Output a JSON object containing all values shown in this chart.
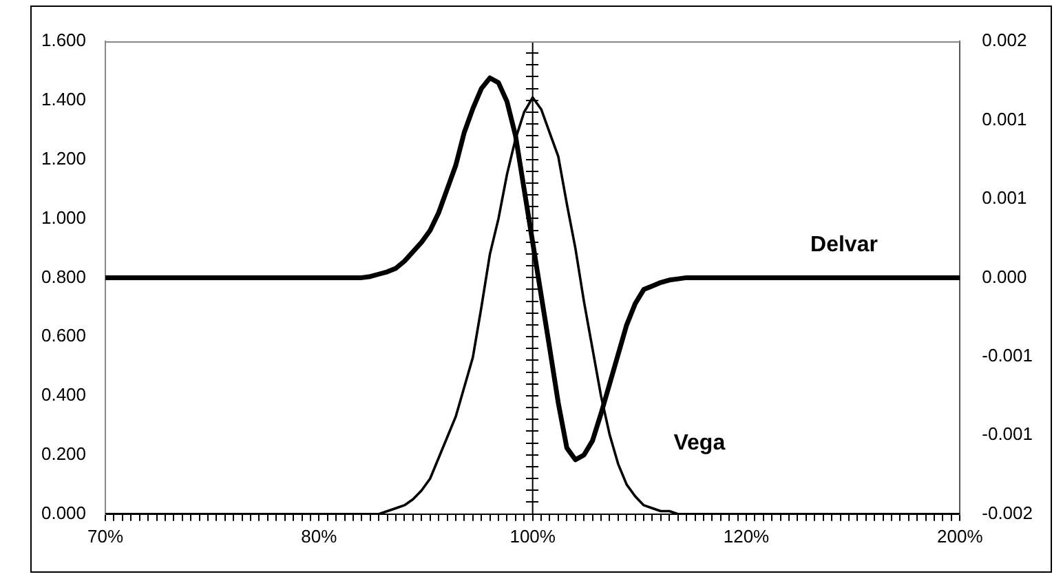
{
  "chart_data": {
    "type": "line",
    "categories": [
      "70%",
      null,
      null,
      null,
      null,
      null,
      null,
      null,
      null,
      null,
      null,
      null,
      null,
      null,
      null,
      null,
      null,
      null,
      null,
      null,
      null,
      null,
      null,
      null,
      null,
      "80%",
      null,
      null,
      null,
      null,
      null,
      null,
      null,
      null,
      null,
      null,
      null,
      null,
      null,
      null,
      null,
      null,
      null,
      null,
      null,
      null,
      null,
      null,
      null,
      null,
      "100%",
      null,
      null,
      null,
      null,
      null,
      null,
      null,
      null,
      null,
      null,
      null,
      null,
      null,
      null,
      null,
      null,
      null,
      null,
      null,
      null,
      null,
      null,
      null,
      null,
      "120%",
      null,
      null,
      null,
      null,
      null,
      null,
      null,
      null,
      null,
      null,
      null,
      null,
      null,
      null,
      null,
      null,
      null,
      null,
      null,
      null,
      null,
      null,
      null,
      null,
      "200%"
    ],
    "series": [
      {
        "name": "Delvar",
        "color": "#000000",
        "axis": "y2",
        "values": [
          0,
          0,
          0,
          0,
          0,
          0,
          0,
          0,
          0,
          0,
          0,
          0,
          0,
          0,
          0,
          0,
          0,
          0,
          0,
          0,
          0,
          0,
          0,
          0,
          0,
          0,
          0,
          0,
          0,
          0,
          0,
          1e-05,
          3e-05,
          5e-05,
          8e-05,
          0.00014,
          0.00022,
          0.0003,
          0.0004,
          0.00055,
          0.00075,
          0.00095,
          0.00123,
          0.00143,
          0.0016,
          0.00169,
          0.00165,
          0.00149,
          0.0012,
          0.00075,
          0.0003,
          -0.00015,
          -0.0006,
          -0.00106,
          -0.00144,
          -0.00154,
          -0.0015,
          -0.00138,
          -0.00115,
          -0.0009,
          -0.00065,
          -0.0004,
          -0.00022,
          -0.0001,
          -7e-05,
          -4e-05,
          -2e-05,
          -1e-05,
          0,
          0,
          0,
          0,
          0,
          0,
          0,
          0,
          0,
          0,
          0,
          0,
          0,
          0,
          0,
          0,
          0,
          0,
          0,
          0,
          0,
          0,
          0,
          0,
          0,
          0,
          0,
          0,
          0,
          0,
          0,
          0,
          0
        ]
      },
      {
        "name": "Vega",
        "color": "#000000",
        "values": [
          0,
          0,
          0,
          0,
          0,
          0,
          0,
          0,
          0,
          0,
          0,
          0,
          0,
          0,
          0,
          0,
          0,
          0,
          0,
          0,
          0,
          0,
          0,
          0,
          0,
          0,
          0,
          0,
          0,
          0,
          0,
          0,
          0,
          0.01,
          0.02,
          0.03,
          0.05,
          0.08,
          0.12,
          0.19,
          0.26,
          0.33,
          0.43,
          0.53,
          0.7,
          0.88,
          1.0,
          1.15,
          1.27,
          1.36,
          1.41,
          1.37,
          1.29,
          1.21,
          1.05,
          0.9,
          0.72,
          0.56,
          0.4,
          0.27,
          0.17,
          0.1,
          0.06,
          0.03,
          0.02,
          0.01,
          0.01,
          0,
          0,
          0,
          0,
          0,
          0,
          0,
          0,
          0,
          0,
          0,
          0,
          0,
          0,
          0,
          0,
          0,
          0,
          0,
          0,
          0,
          0,
          0,
          0,
          0,
          0,
          0,
          0,
          0,
          0,
          0,
          0,
          0,
          0
        ]
      }
    ],
    "ylim": [
      0,
      1.6
    ],
    "yticks": [
      {
        "value": 0,
        "label": "0.000"
      },
      {
        "value": 0.2,
        "label": "0.200"
      },
      {
        "value": 0.4,
        "label": "0.400"
      },
      {
        "value": 0.6,
        "label": "0.600"
      },
      {
        "value": 0.8,
        "label": "0.800"
      },
      {
        "value": 1.0,
        "label": "1.000"
      },
      {
        "value": 1.2,
        "label": "1.200"
      },
      {
        "value": 1.4,
        "label": "1.400"
      },
      {
        "value": 1.6,
        "label": "1.600"
      }
    ],
    "y2lim": [
      -0.002,
      0.002
    ],
    "y2ticks": [
      {
        "value": -0.002,
        "label": "-0.002"
      },
      {
        "value": -0.001333,
        "label": "-0.001"
      },
      {
        "value": -0.000667,
        "label": "-0.001"
      },
      {
        "value": 0,
        "label": "0.000"
      },
      {
        "value": 0.000667,
        "label": "0.001"
      },
      {
        "value": 0.001333,
        "label": "0.001"
      },
      {
        "value": 0.002,
        "label": "0.002"
      }
    ],
    "ref_lines": [
      {
        "axis": "x",
        "value": "100%",
        "color": "#000000"
      }
    ],
    "grid": false,
    "legend": false,
    "marker": "none",
    "line_style": "solid"
  }
}
